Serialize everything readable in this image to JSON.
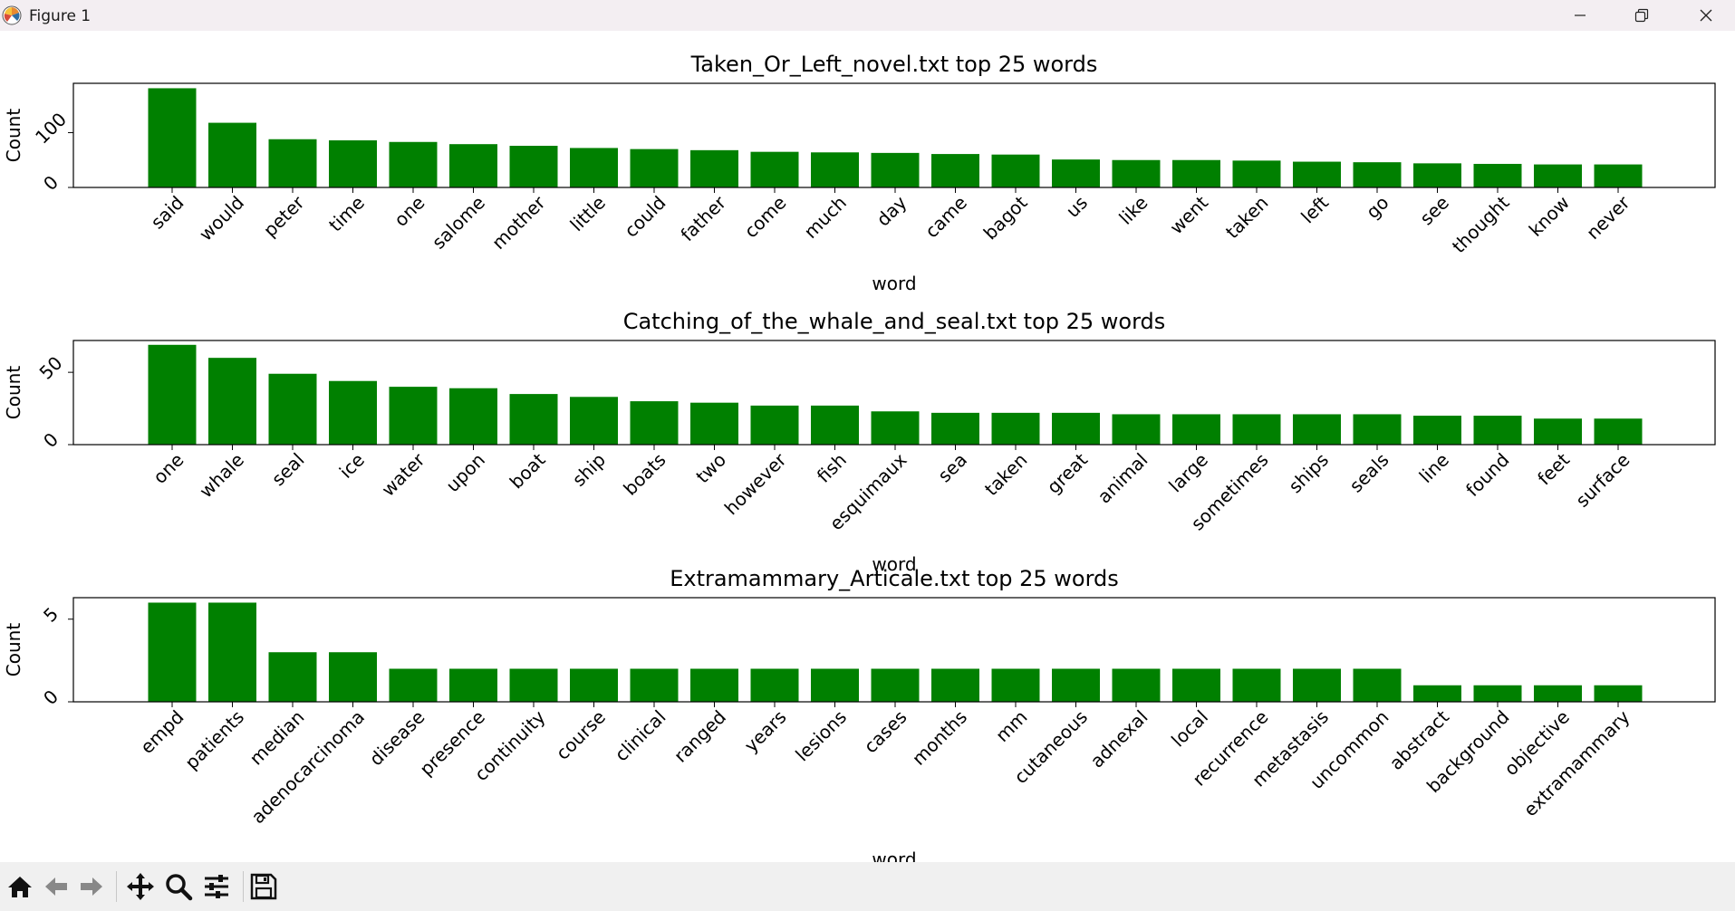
{
  "window": {
    "title": "Figure 1"
  },
  "toolbar": {
    "buttons": [
      "home-icon",
      "back-arrow-icon",
      "forward-arrow-icon",
      "pan-icon",
      "zoom-icon",
      "configure-subplots-icon",
      "save-icon"
    ]
  },
  "colors": {
    "bar": "#008000",
    "titlebar": "#f3eef2",
    "toolbar": "#f0f0f0"
  },
  "chart_data": [
    {
      "type": "bar",
      "title": "Taken_Or_Left_novel.txt top 25 words",
      "xlabel": "word",
      "ylabel": "Count",
      "ylim": [
        0,
        190
      ],
      "yticks": [
        0,
        100
      ],
      "categories": [
        "said",
        "would",
        "peter",
        "time",
        "one",
        "salome",
        "mother",
        "little",
        "could",
        "father",
        "come",
        "much",
        "day",
        "came",
        "bagot",
        "us",
        "like",
        "went",
        "taken",
        "left",
        "go",
        "see",
        "thought",
        "know",
        "never"
      ],
      "values": [
        181,
        118,
        88,
        86,
        83,
        79,
        76,
        72,
        70,
        68,
        65,
        64,
        63,
        61,
        60,
        51,
        50,
        50,
        49,
        47,
        46,
        44,
        43,
        42,
        42
      ]
    },
    {
      "type": "bar",
      "title": "Catching_of_the_whale_and_seal.txt top 25 words",
      "xlabel": "word",
      "ylabel": "Count",
      "ylim": [
        0,
        72
      ],
      "yticks": [
        0,
        50
      ],
      "categories": [
        "one",
        "whale",
        "seal",
        "ice",
        "water",
        "upon",
        "boat",
        "ship",
        "boats",
        "two",
        "however",
        "fish",
        "esquimaux",
        "sea",
        "taken",
        "great",
        "animal",
        "large",
        "sometimes",
        "ships",
        "seals",
        "line",
        "found",
        "feet",
        "surface"
      ],
      "values": [
        69,
        60,
        49,
        44,
        40,
        39,
        35,
        33,
        30,
        29,
        27,
        27,
        23,
        22,
        22,
        22,
        21,
        21,
        21,
        21,
        21,
        20,
        20,
        18,
        18
      ]
    },
    {
      "type": "bar",
      "title": "Extramammary_Articale.txt top 25 words",
      "xlabel": "word",
      "ylabel": "Count",
      "ylim": [
        0,
        6.3
      ],
      "yticks": [
        0,
        5
      ],
      "categories": [
        "empd",
        "patients",
        "median",
        "adenocarcinoma",
        "disease",
        "presence",
        "continuity",
        "course",
        "clinical",
        "ranged",
        "years",
        "lesions",
        "cases",
        "months",
        "mm",
        "cutaneous",
        "adnexal",
        "local",
        "recurrence",
        "metastasis",
        "uncommon",
        "abstract",
        "background",
        "objective",
        "extramammary"
      ],
      "values": [
        6,
        6,
        3,
        3,
        2,
        2,
        2,
        2,
        2,
        2,
        2,
        2,
        2,
        2,
        2,
        2,
        2,
        2,
        2,
        2,
        2,
        1,
        1,
        1,
        1
      ]
    }
  ]
}
